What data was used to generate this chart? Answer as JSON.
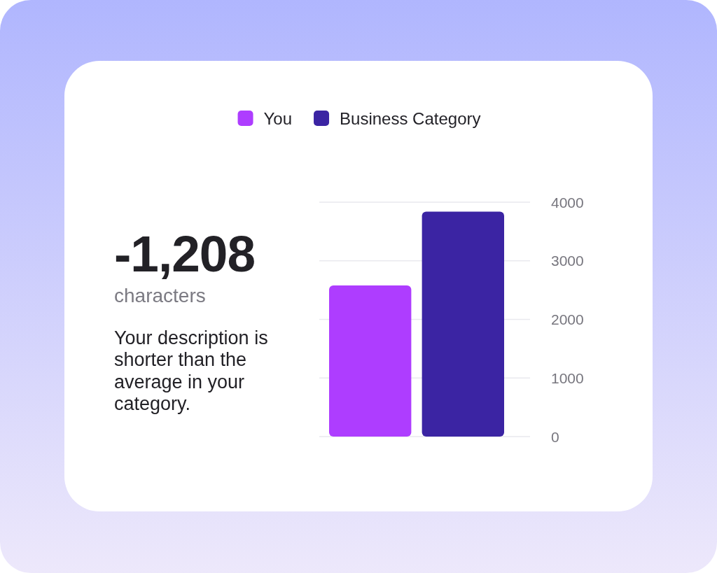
{
  "chart_data": {
    "type": "bar",
    "categories": [
      null
    ],
    "series": [
      {
        "name": "You",
        "color": "#ae3dff",
        "values": [
          2580
        ]
      },
      {
        "name": "Business Category",
        "color": "#3b24a3",
        "values": [
          3840
        ]
      }
    ],
    "ylim": [
      0,
      4000
    ],
    "yticks": [
      0,
      1000,
      2000,
      3000,
      4000
    ],
    "grid": "y",
    "legend": "top",
    "tick_labels": "y",
    "annotations": [
      "-1,208",
      "characters",
      "Your description is shorter than the average in your category."
    ]
  }
}
